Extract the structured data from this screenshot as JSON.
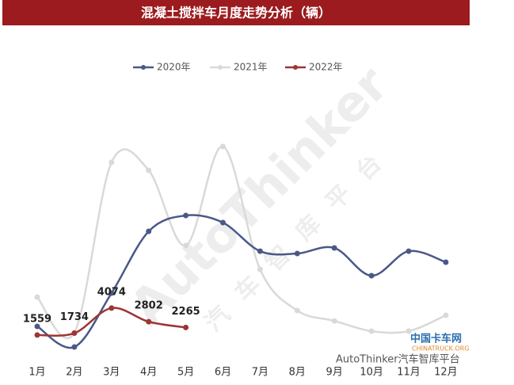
{
  "chart_data": {
    "type": "line",
    "title": "混凝土搅拌车月度走势分析（辆）",
    "categories": [
      "1月",
      "2月",
      "3月",
      "4月",
      "5月",
      "6月",
      "7月",
      "8月",
      "9月",
      "10月",
      "11月",
      "12月"
    ],
    "series": [
      {
        "name": "2020年",
        "color": "#4b5887",
        "values": [
          2370,
          440,
          5470,
          11240,
          12720,
          12060,
          9390,
          9170,
          9690,
          7100,
          9390,
          8360
        ]
      },
      {
        "name": "2021年",
        "color": "#d9d9d9",
        "values": [
          5100,
          1780,
          17680,
          16940,
          9910,
          19160,
          7690,
          3850,
          2880,
          1920,
          1920,
          3400
        ]
      },
      {
        "name": "2022年",
        "color": "#9e3535",
        "values": [
          1559,
          1734,
          4074,
          2802,
          2265,
          null,
          null,
          null,
          null,
          null,
          null,
          null
        ],
        "show_labels": true
      }
    ],
    "legend": "top",
    "watermark": "AutoThinker",
    "watermark_sub": "汽车智库平台",
    "footer": "AutoThinker汽车智库平台",
    "logo": "中国卡车网",
    "logo_sub": "CHINATRUCK.ORG"
  }
}
